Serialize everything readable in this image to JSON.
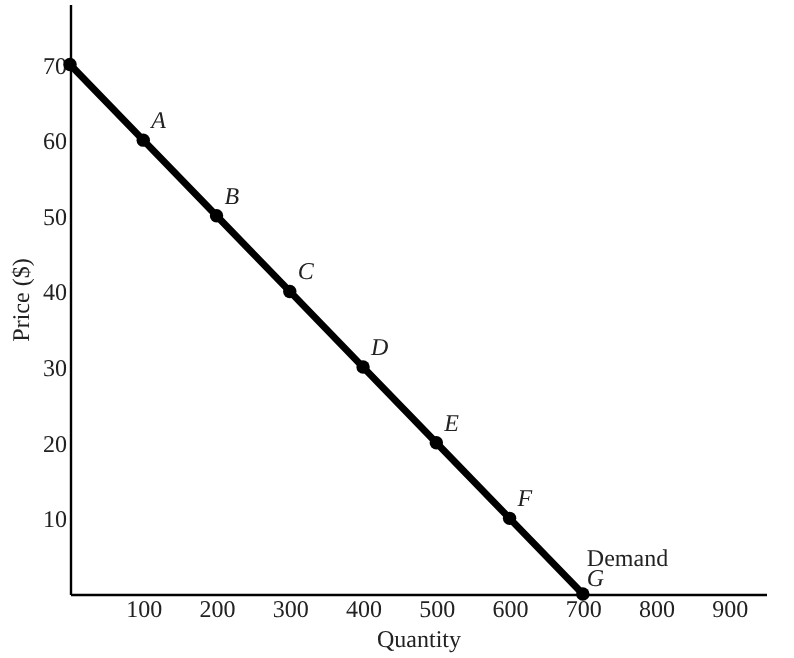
{
  "chart_data": {
    "type": "line",
    "xlabel": "Quantity",
    "ylabel": "Price ($)",
    "x": [
      0,
      100,
      200,
      300,
      400,
      500,
      600,
      700
    ],
    "series": [
      {
        "name": "Demand",
        "color": "#000000",
        "values": [
          70,
          60,
          50,
          40,
          30,
          20,
          10,
          0
        ]
      }
    ],
    "xlim": [
      0,
      950
    ],
    "ylim": [
      0,
      78
    ],
    "xticks": [
      100,
      200,
      300,
      400,
      500,
      600,
      700,
      800,
      900
    ],
    "yticks": [
      10,
      20,
      30,
      40,
      50,
      60,
      70
    ],
    "grid": false,
    "marker": "circle",
    "line_style": "solid",
    "annotations": [
      {
        "text": "A",
        "x": 100,
        "y": 60
      },
      {
        "text": "B",
        "x": 200,
        "y": 50
      },
      {
        "text": "C",
        "x": 300,
        "y": 40
      },
      {
        "text": "D",
        "x": 400,
        "y": 30
      },
      {
        "text": "E",
        "x": 500,
        "y": 20
      },
      {
        "text": "F",
        "x": 600,
        "y": 10
      },
      {
        "text": "G",
        "x": 700,
        "y": 0
      }
    ]
  }
}
